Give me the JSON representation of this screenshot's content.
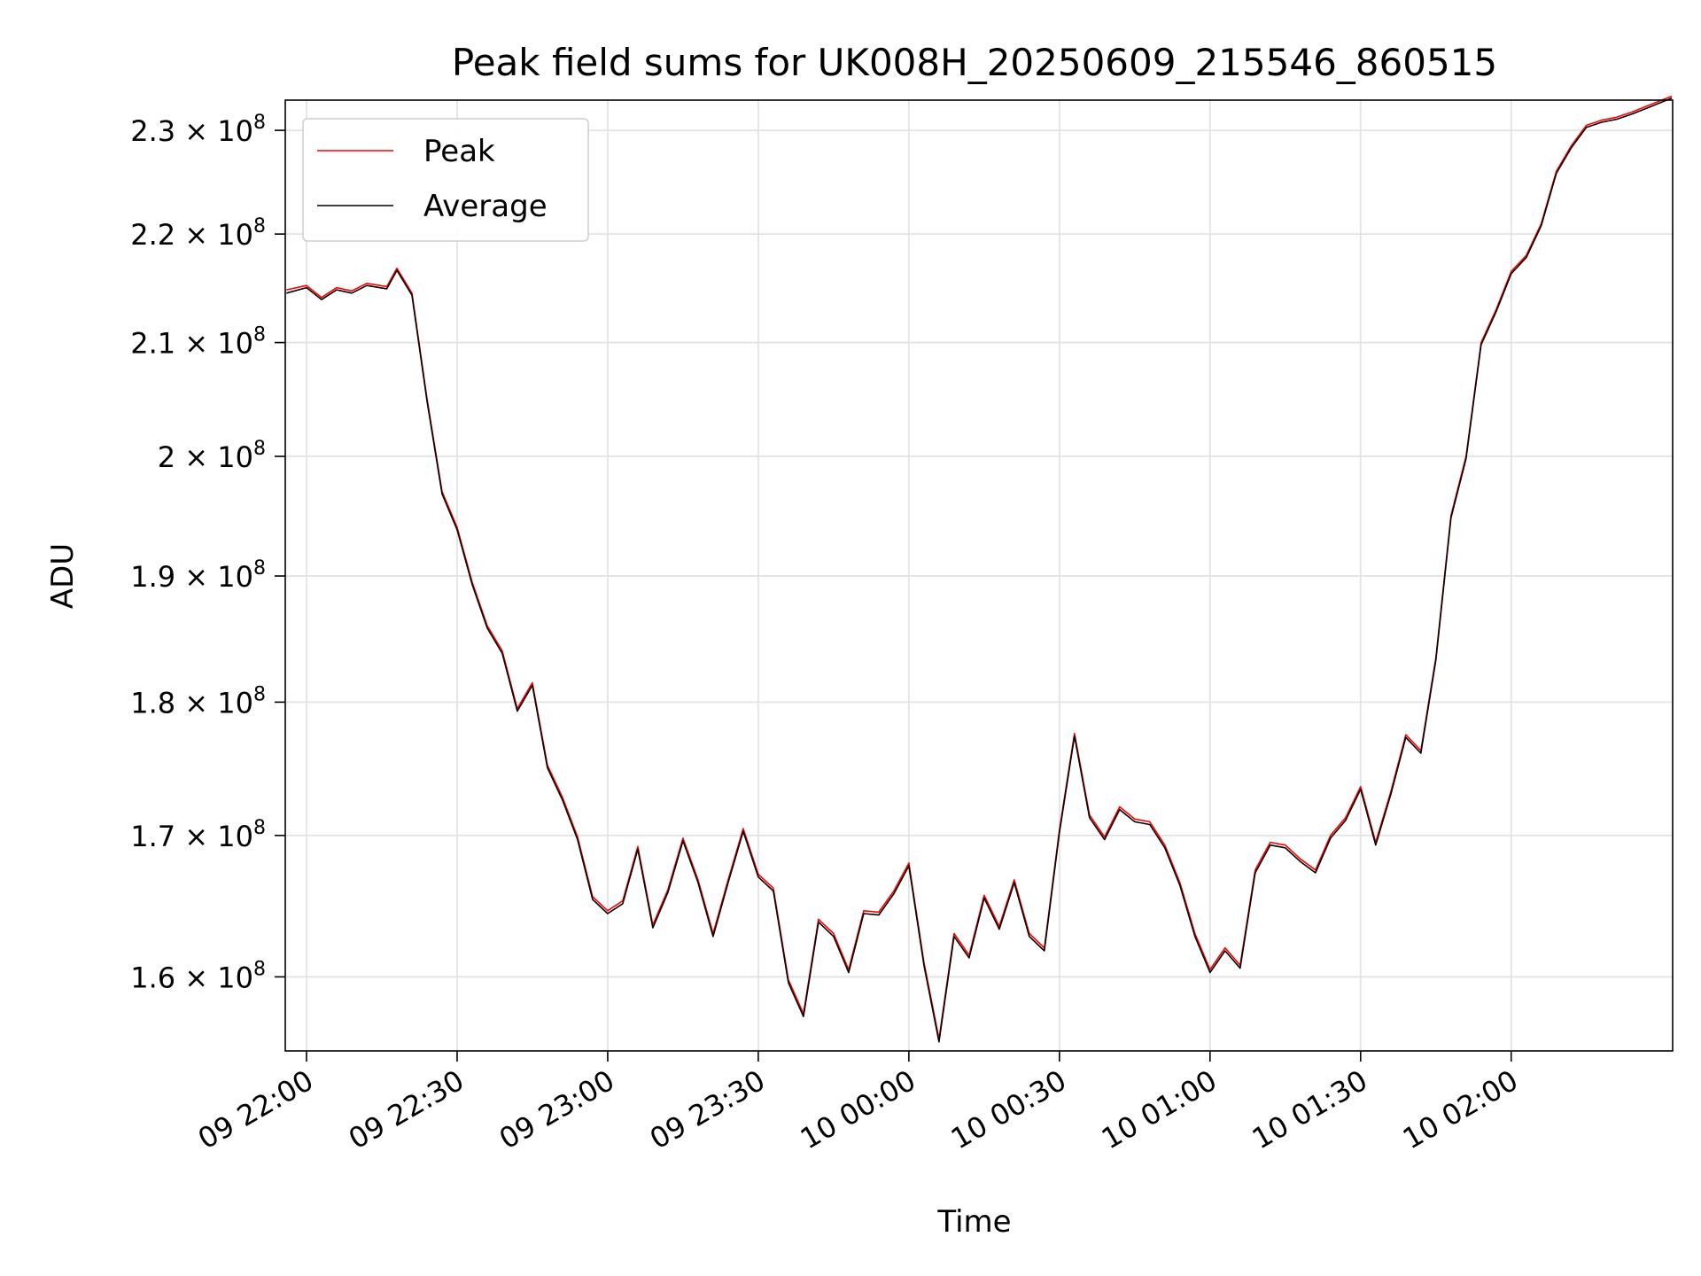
{
  "chart_data": {
    "type": "line",
    "title": "Peak field sums for UK008H_20250609_215546_860515",
    "xlabel": "Time",
    "ylabel": "ADU",
    "yscale": "log",
    "xlim": [
      "2025-06-09 21:55:46",
      "2025-06-10 02:32:10"
    ],
    "ylim": [
      155000000,
      233000000
    ],
    "grid": true,
    "legend": "top-left",
    "x_ticks": [
      "09 22:00",
      "09 22:30",
      "09 23:00",
      "09 23:30",
      "10 00:00",
      "10 00:30",
      "10 01:00",
      "10 01:30",
      "10 02:00"
    ],
    "x_tick_times": [
      "2025-06-09 22:00",
      "2025-06-09 22:30",
      "2025-06-09 23:00",
      "2025-06-09 23:30",
      "2025-06-10 00:00",
      "2025-06-10 00:30",
      "2025-06-10 01:00",
      "2025-06-10 01:30",
      "2025-06-10 02:00"
    ],
    "y_ticks": [
      {
        "value": 160000000,
        "mantissa": "1.6",
        "exp": "8"
      },
      {
        "value": 170000000,
        "mantissa": "1.7",
        "exp": "8"
      },
      {
        "value": 180000000,
        "mantissa": "1.8",
        "exp": "8"
      },
      {
        "value": 190000000,
        "mantissa": "1.9",
        "exp": "8"
      },
      {
        "value": 200000000,
        "mantissa": "2",
        "exp": "8"
      },
      {
        "value": 210000000,
        "mantissa": "2.1",
        "exp": "8"
      },
      {
        "value": 220000000,
        "mantissa": "2.2",
        "exp": "8"
      },
      {
        "value": 230000000,
        "mantissa": "2.3",
        "exp": "8"
      }
    ],
    "x": [
      "2025-06-09 21:56",
      "2025-06-09 22:00",
      "2025-06-09 22:03",
      "2025-06-09 22:06",
      "2025-06-09 22:09",
      "2025-06-09 22:12",
      "2025-06-09 22:16",
      "2025-06-09 22:18",
      "2025-06-09 22:21",
      "2025-06-09 22:24",
      "2025-06-09 22:27",
      "2025-06-09 22:30",
      "2025-06-09 22:33",
      "2025-06-09 22:36",
      "2025-06-09 22:39",
      "2025-06-09 22:42",
      "2025-06-09 22:45",
      "2025-06-09 22:48",
      "2025-06-09 22:51",
      "2025-06-09 22:54",
      "2025-06-09 22:57",
      "2025-06-09 23:00",
      "2025-06-09 23:03",
      "2025-06-09 23:06",
      "2025-06-09 23:09",
      "2025-06-09 23:12",
      "2025-06-09 23:15",
      "2025-06-09 23:18",
      "2025-06-09 23:21",
      "2025-06-09 23:24",
      "2025-06-09 23:27",
      "2025-06-09 23:30",
      "2025-06-09 23:33",
      "2025-06-09 23:36",
      "2025-06-09 23:39",
      "2025-06-09 23:42",
      "2025-06-09 23:45",
      "2025-06-09 23:48",
      "2025-06-09 23:51",
      "2025-06-09 23:54",
      "2025-06-09 23:57",
      "2025-06-10 00:00",
      "2025-06-10 00:03",
      "2025-06-10 00:06",
      "2025-06-10 00:09",
      "2025-06-10 00:12",
      "2025-06-10 00:15",
      "2025-06-10 00:18",
      "2025-06-10 00:21",
      "2025-06-10 00:24",
      "2025-06-10 00:27",
      "2025-06-10 00:30",
      "2025-06-10 00:33",
      "2025-06-10 00:36",
      "2025-06-10 00:39",
      "2025-06-10 00:42",
      "2025-06-10 00:45",
      "2025-06-10 00:48",
      "2025-06-10 00:51",
      "2025-06-10 00:54",
      "2025-06-10 00:57",
      "2025-06-10 01:00",
      "2025-06-10 01:03",
      "2025-06-10 01:06",
      "2025-06-10 01:09",
      "2025-06-10 01:12",
      "2025-06-10 01:15",
      "2025-06-10 01:18",
      "2025-06-10 01:21",
      "2025-06-10 01:24",
      "2025-06-10 01:27",
      "2025-06-10 01:30",
      "2025-06-10 01:33",
      "2025-06-10 01:36",
      "2025-06-10 01:39",
      "2025-06-10 01:42",
      "2025-06-10 01:45",
      "2025-06-10 01:48",
      "2025-06-10 01:51",
      "2025-06-10 01:54",
      "2025-06-10 01:57",
      "2025-06-10 02:00",
      "2025-06-10 02:03",
      "2025-06-10 02:06",
      "2025-06-10 02:09",
      "2025-06-10 02:12",
      "2025-06-10 02:15",
      "2025-06-10 02:18",
      "2025-06-10 02:21",
      "2025-06-10 02:24",
      "2025-06-10 02:27",
      "2025-06-10 02:30",
      "2025-06-10 02:32"
    ],
    "series": [
      {
        "name": "Peak",
        "color": "#ff0000",
        "values": [
          214800000,
          215200000,
          214100000,
          215000000,
          214700000,
          215400000,
          215100000,
          216800000,
          214500000,
          205000000,
          197000000,
          194000000,
          189500000,
          186000000,
          184000000,
          179500000,
          181500000,
          175200000,
          172800000,
          169900000,
          165600000,
          164600000,
          165300000,
          169200000,
          163600000,
          166100000,
          169800000,
          166800000,
          163000000,
          166800000,
          170500000,
          167200000,
          166200000,
          159800000,
          157500000,
          164000000,
          163000000,
          160500000,
          164600000,
          164500000,
          166000000,
          168000000,
          161000000,
          155800000,
          163000000,
          161500000,
          165700000,
          163500000,
          166800000,
          163000000,
          162000000,
          170400000,
          177600000,
          171500000,
          169900000,
          172100000,
          171200000,
          171000000,
          169300000,
          166600000,
          163000000,
          160500000,
          162000000,
          160800000,
          167500000,
          169500000,
          169300000,
          168300000,
          167500000,
          170000000,
          171300000,
          173600000,
          169500000,
          173200000,
          177500000,
          176300000,
          183500000,
          195000000,
          200000000,
          210000000,
          213000000,
          216500000,
          218000000,
          221000000,
          226000000,
          228500000,
          230500000,
          231000000,
          231300000,
          231800000,
          232400000,
          233000000,
          233400000
        ]
      },
      {
        "name": "Average",
        "color": "#000000",
        "values": [
          214500000,
          215000000,
          213900000,
          214800000,
          214500000,
          215200000,
          214900000,
          216600000,
          214300000,
          204800000,
          196800000,
          193800000,
          189300000,
          185800000,
          183800000,
          179300000,
          181300000,
          175000000,
          172600000,
          169700000,
          165400000,
          164400000,
          165100000,
          169000000,
          163400000,
          165900000,
          169600000,
          166600000,
          162800000,
          166600000,
          170300000,
          167000000,
          166000000,
          159600000,
          157300000,
          163800000,
          162800000,
          160300000,
          164400000,
          164300000,
          165800000,
          167800000,
          160800000,
          155600000,
          162800000,
          161300000,
          165500000,
          163300000,
          166600000,
          162800000,
          161800000,
          170200000,
          177400000,
          171300000,
          169700000,
          171900000,
          171000000,
          170800000,
          169100000,
          166400000,
          162800000,
          160300000,
          161800000,
          160600000,
          167300000,
          169300000,
          169100000,
          168100000,
          167300000,
          169800000,
          171100000,
          173400000,
          169300000,
          173000000,
          177300000,
          176100000,
          183300000,
          194800000,
          199800000,
          209800000,
          212800000,
          216300000,
          217800000,
          220800000,
          225800000,
          228300000,
          230300000,
          230800000,
          231100000,
          231600000,
          232200000,
          232800000,
          233200000
        ]
      }
    ]
  }
}
